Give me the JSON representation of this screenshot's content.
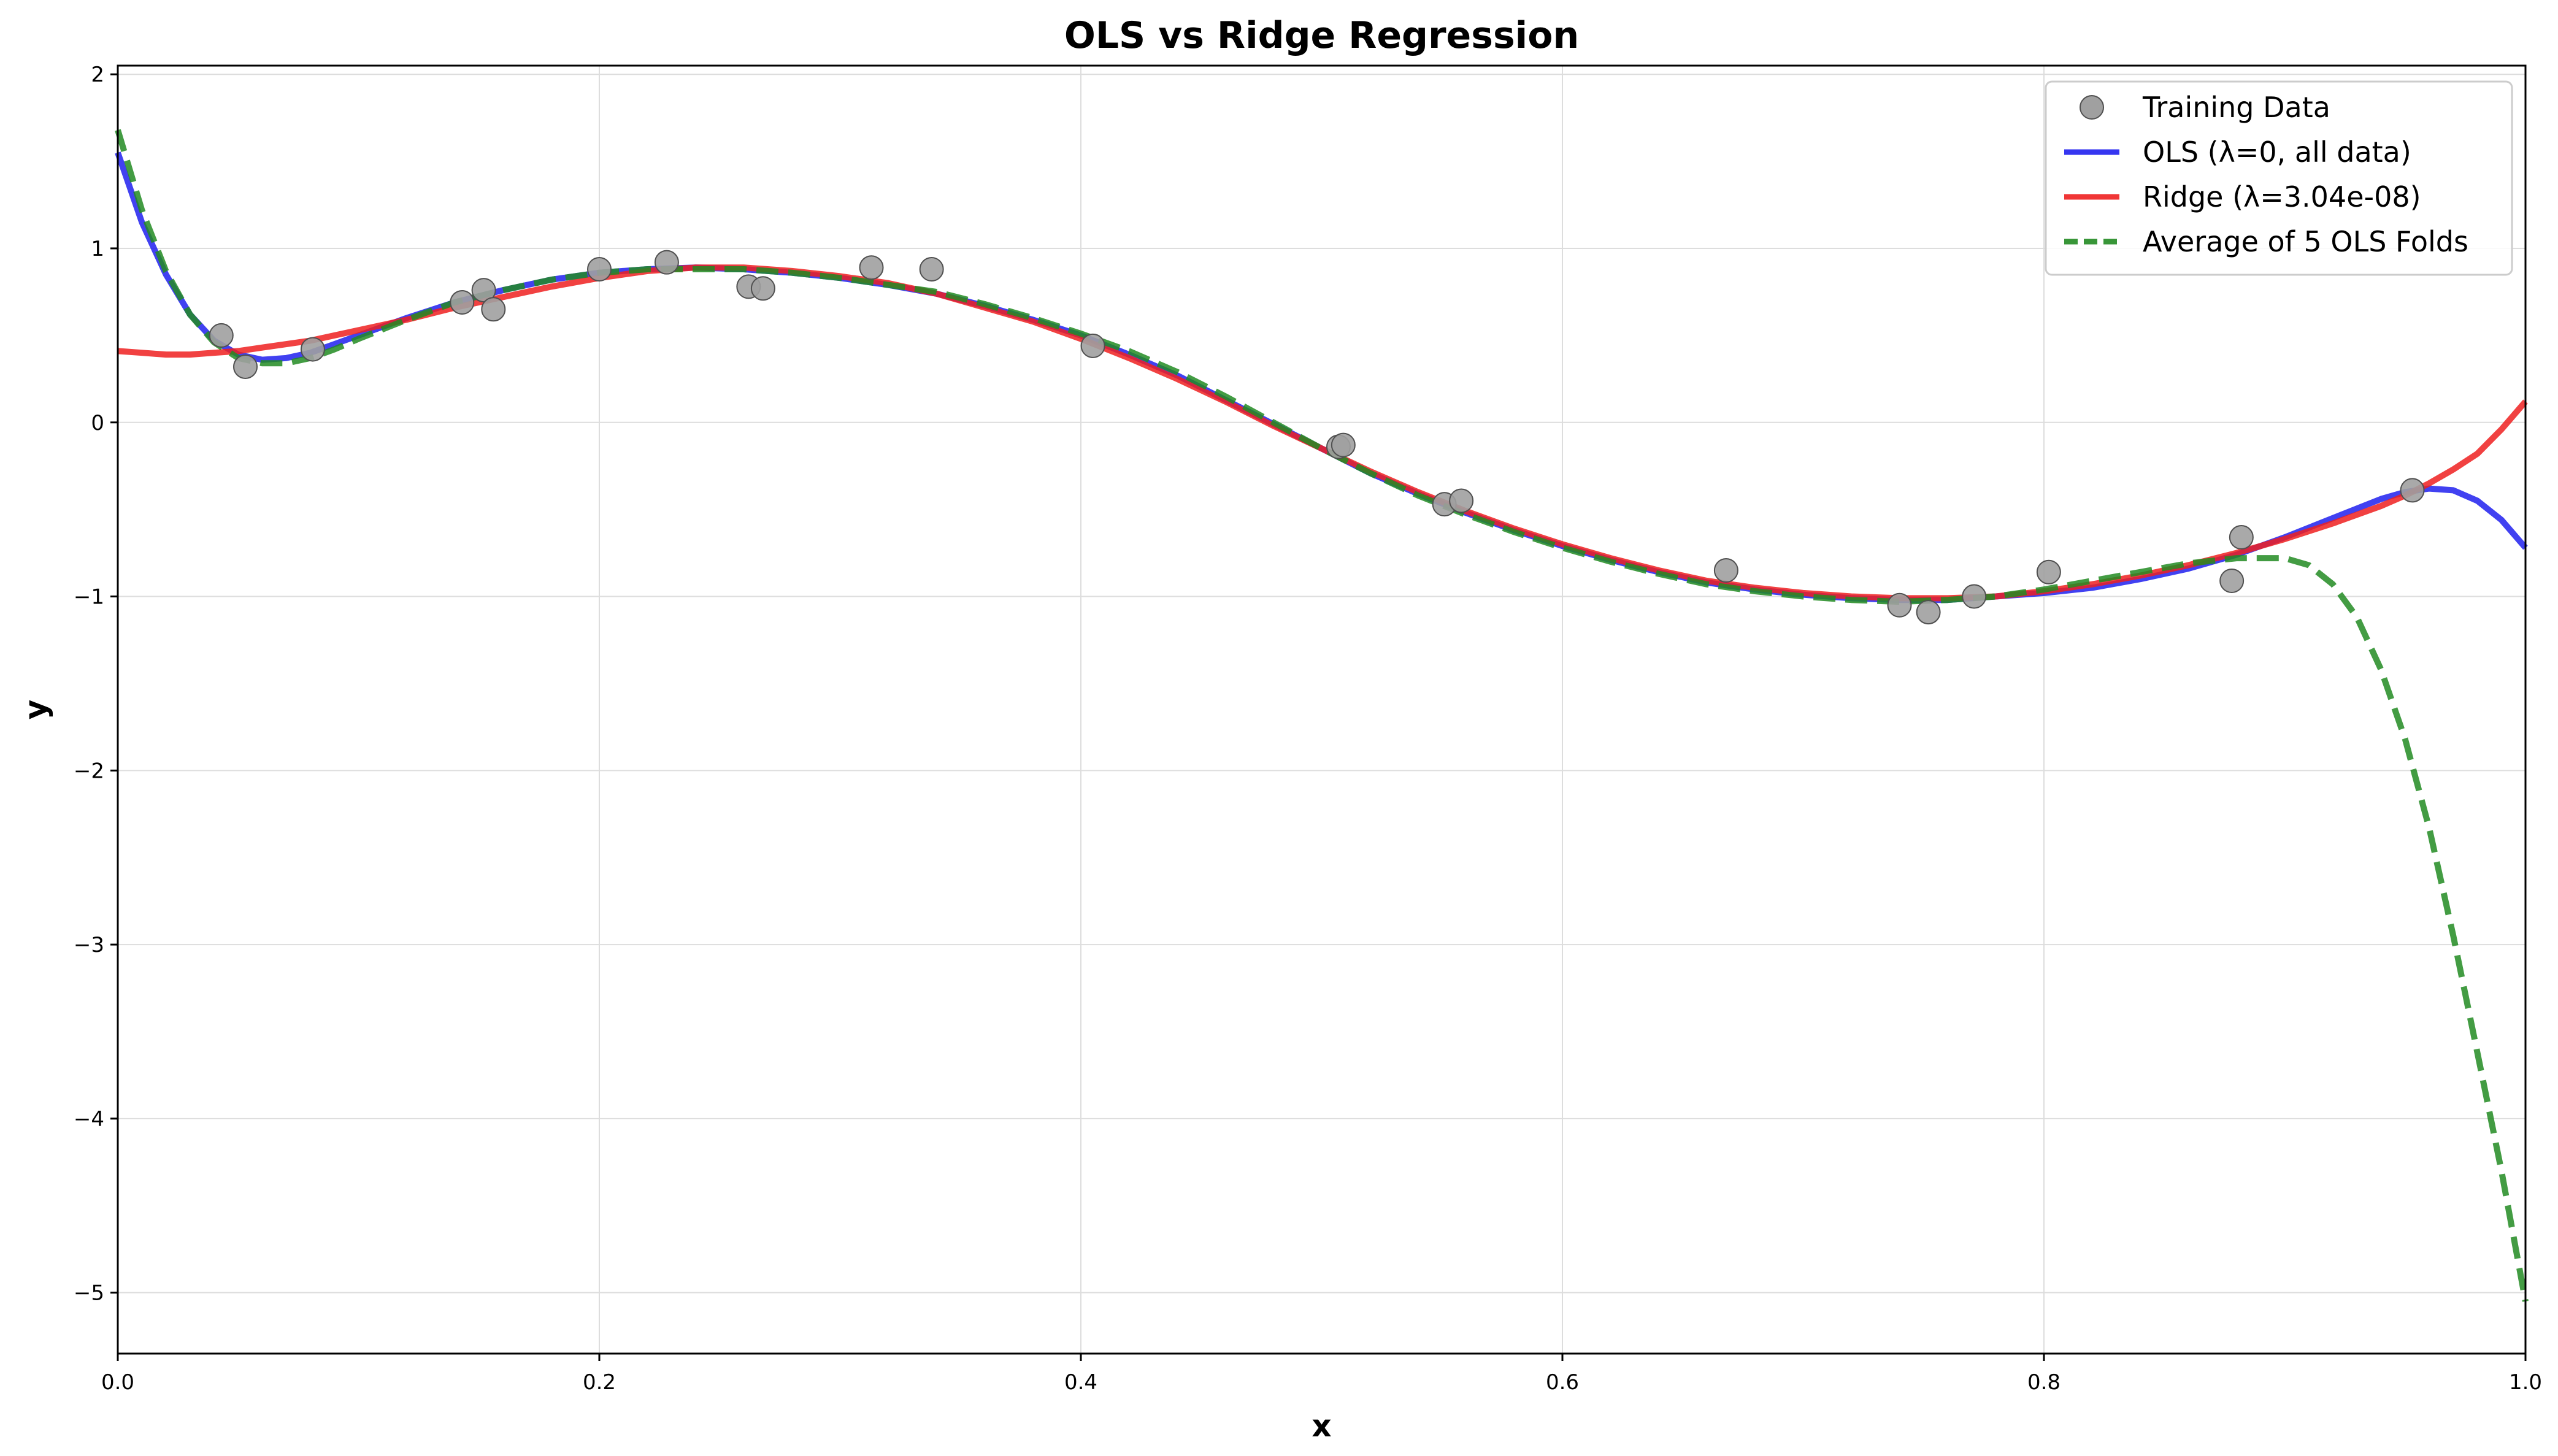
{
  "chart_data": {
    "type": "line",
    "title": "OLS vs Ridge Regression",
    "xlabel": "x",
    "ylabel": "y",
    "xlim": [
      0.0,
      1.0
    ],
    "ylim": [
      -5.35,
      2.05
    ],
    "xticks": [
      0.0,
      0.2,
      0.4,
      0.6,
      0.8,
      1.0
    ],
    "xtick_labels": [
      "0.0",
      "0.2",
      "0.4",
      "0.6",
      "0.8",
      "1.0"
    ],
    "yticks": [
      2,
      1,
      0,
      -1,
      -2,
      -3,
      -4,
      -5
    ],
    "ytick_labels": [
      "2",
      "1",
      "0",
      "−1",
      "−2",
      "−3",
      "−4",
      "−5"
    ],
    "grid": true,
    "legend_position": "top-right",
    "scatter": {
      "name": "Training Data",
      "color": "#a0a0a0",
      "x": [
        0.043,
        0.053,
        0.081,
        0.143,
        0.152,
        0.156,
        0.2,
        0.228,
        0.262,
        0.268,
        0.313,
        0.338,
        0.405,
        0.507,
        0.509,
        0.551,
        0.558,
        0.668,
        0.74,
        0.752,
        0.771,
        0.802,
        0.878,
        0.882,
        0.953
      ],
      "y": [
        0.5,
        0.32,
        0.42,
        0.69,
        0.76,
        0.65,
        0.88,
        0.92,
        0.78,
        0.77,
        0.89,
        0.88,
        0.44,
        -0.14,
        -0.13,
        -0.47,
        -0.45,
        -0.85,
        -1.05,
        -1.09,
        -1.0,
        -0.86,
        -0.91,
        -0.66,
        -0.39
      ]
    },
    "series": [
      {
        "name": "OLS (λ=0, all data)",
        "color": "#2020ee",
        "style": "solid",
        "x": [
          0.0,
          0.01,
          0.02,
          0.03,
          0.04,
          0.05,
          0.06,
          0.07,
          0.08,
          0.09,
          0.1,
          0.12,
          0.14,
          0.16,
          0.18,
          0.2,
          0.22,
          0.24,
          0.26,
          0.28,
          0.3,
          0.32,
          0.34,
          0.36,
          0.38,
          0.4,
          0.42,
          0.44,
          0.46,
          0.48,
          0.5,
          0.52,
          0.54,
          0.56,
          0.58,
          0.6,
          0.62,
          0.64,
          0.66,
          0.68,
          0.7,
          0.72,
          0.74,
          0.76,
          0.78,
          0.8,
          0.82,
          0.84,
          0.86,
          0.88,
          0.9,
          0.92,
          0.94,
          0.95,
          0.96,
          0.97,
          0.98,
          0.99,
          1.0
        ],
        "y": [
          1.55,
          1.15,
          0.85,
          0.62,
          0.47,
          0.39,
          0.36,
          0.37,
          0.4,
          0.45,
          0.5,
          0.6,
          0.69,
          0.76,
          0.82,
          0.86,
          0.88,
          0.89,
          0.88,
          0.86,
          0.83,
          0.79,
          0.74,
          0.67,
          0.59,
          0.5,
          0.39,
          0.27,
          0.13,
          -0.01,
          -0.15,
          -0.29,
          -0.41,
          -0.52,
          -0.62,
          -0.71,
          -0.79,
          -0.86,
          -0.92,
          -0.96,
          -0.99,
          -1.01,
          -1.02,
          -1.02,
          -1.0,
          -0.98,
          -0.95,
          -0.9,
          -0.84,
          -0.76,
          -0.66,
          -0.55,
          -0.44,
          -0.4,
          -0.38,
          -0.39,
          -0.45,
          -0.56,
          -0.72
        ]
      },
      {
        "name": "Ridge (λ=3.04e-08)",
        "color": "#ee2020",
        "style": "solid",
        "x": [
          0.0,
          0.01,
          0.02,
          0.03,
          0.04,
          0.05,
          0.06,
          0.07,
          0.08,
          0.09,
          0.1,
          0.12,
          0.14,
          0.16,
          0.18,
          0.2,
          0.22,
          0.24,
          0.26,
          0.28,
          0.3,
          0.32,
          0.34,
          0.36,
          0.38,
          0.4,
          0.42,
          0.44,
          0.46,
          0.48,
          0.5,
          0.52,
          0.54,
          0.56,
          0.58,
          0.6,
          0.62,
          0.64,
          0.66,
          0.68,
          0.7,
          0.72,
          0.74,
          0.76,
          0.78,
          0.8,
          0.82,
          0.84,
          0.86,
          0.88,
          0.9,
          0.92,
          0.94,
          0.95,
          0.96,
          0.97,
          0.98,
          0.99,
          1.0
        ],
        "y": [
          0.41,
          0.4,
          0.39,
          0.39,
          0.4,
          0.41,
          0.43,
          0.45,
          0.47,
          0.5,
          0.53,
          0.59,
          0.66,
          0.72,
          0.78,
          0.83,
          0.87,
          0.89,
          0.89,
          0.87,
          0.84,
          0.8,
          0.74,
          0.66,
          0.58,
          0.48,
          0.37,
          0.25,
          0.12,
          -0.02,
          -0.15,
          -0.28,
          -0.4,
          -0.51,
          -0.61,
          -0.7,
          -0.78,
          -0.85,
          -0.91,
          -0.95,
          -0.98,
          -1.0,
          -1.01,
          -1.01,
          -1.0,
          -0.97,
          -0.93,
          -0.88,
          -0.82,
          -0.75,
          -0.67,
          -0.58,
          -0.48,
          -0.42,
          -0.35,
          -0.27,
          -0.18,
          -0.04,
          0.12
        ]
      },
      {
        "name": "Average of 5 OLS Folds",
        "color": "#228b22",
        "style": "dashed",
        "x": [
          0.0,
          0.01,
          0.02,
          0.03,
          0.04,
          0.05,
          0.06,
          0.07,
          0.08,
          0.09,
          0.1,
          0.12,
          0.14,
          0.16,
          0.18,
          0.2,
          0.22,
          0.24,
          0.26,
          0.28,
          0.3,
          0.32,
          0.34,
          0.36,
          0.38,
          0.4,
          0.42,
          0.44,
          0.46,
          0.48,
          0.5,
          0.52,
          0.54,
          0.56,
          0.58,
          0.6,
          0.62,
          0.64,
          0.66,
          0.68,
          0.7,
          0.72,
          0.74,
          0.76,
          0.78,
          0.8,
          0.82,
          0.84,
          0.86,
          0.88,
          0.9,
          0.91,
          0.92,
          0.93,
          0.94,
          0.95,
          0.96,
          0.97,
          0.98,
          0.99,
          1.0
        ],
        "y": [
          1.68,
          1.22,
          0.87,
          0.62,
          0.46,
          0.37,
          0.34,
          0.34,
          0.37,
          0.42,
          0.48,
          0.59,
          0.69,
          0.76,
          0.82,
          0.86,
          0.88,
          0.88,
          0.88,
          0.86,
          0.83,
          0.79,
          0.75,
          0.68,
          0.6,
          0.51,
          0.41,
          0.29,
          0.15,
          0.0,
          -0.15,
          -0.29,
          -0.42,
          -0.53,
          -0.63,
          -0.72,
          -0.8,
          -0.87,
          -0.93,
          -0.97,
          -1.0,
          -1.02,
          -1.03,
          -1.02,
          -1.0,
          -0.96,
          -0.91,
          -0.86,
          -0.81,
          -0.78,
          -0.78,
          -0.82,
          -0.93,
          -1.12,
          -1.42,
          -1.82,
          -2.33,
          -2.95,
          -3.62,
          -4.3,
          -5.05
        ]
      }
    ]
  }
}
